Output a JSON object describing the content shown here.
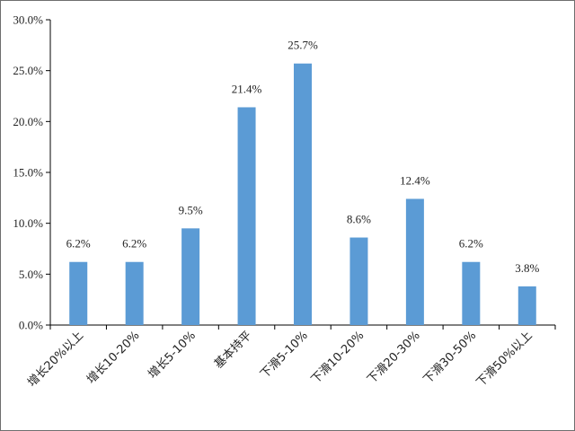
{
  "chart_data": {
    "type": "bar",
    "categories": [
      "增长20%以上",
      "增长10-20%",
      "增长5-10%",
      "基本持平",
      "下滑5-10%",
      "下滑10-20%",
      "下滑20-30%",
      "下滑30-50%",
      "下滑50%以上"
    ],
    "values": [
      6.2,
      6.2,
      9.5,
      21.4,
      25.7,
      8.6,
      12.4,
      6.2,
      3.8
    ],
    "data_labels": [
      "6.2%",
      "6.2%",
      "9.5%",
      "21.4%",
      "25.7%",
      "8.6%",
      "12.4%",
      "6.2%",
      "3.8%"
    ],
    "y_ticks": [
      0,
      5,
      10,
      15,
      20,
      25,
      30
    ],
    "y_tick_labels": [
      "0.0%",
      "5.0%",
      "10.0%",
      "15.0%",
      "20.0%",
      "25.0%",
      "30.0%"
    ],
    "ylim": [
      0,
      30
    ],
    "grid": false,
    "legend": "none",
    "bar_color": "#5b9bd5",
    "axis_color": "#000000"
  }
}
